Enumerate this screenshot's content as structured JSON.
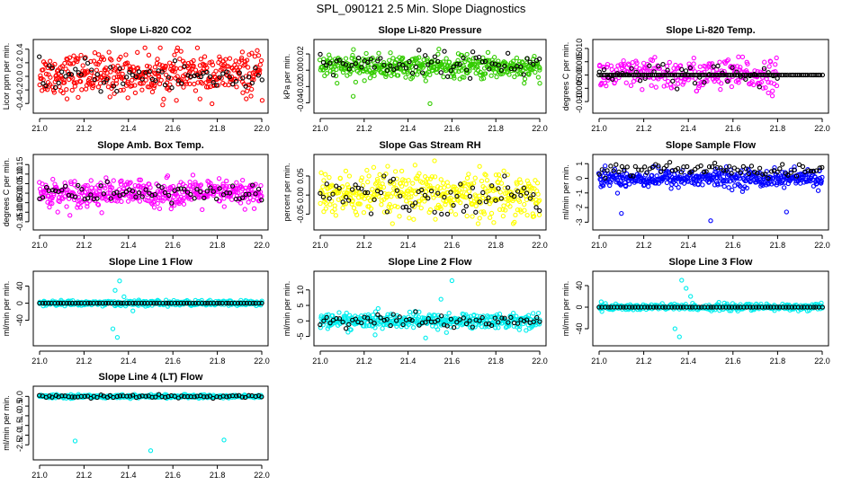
{
  "title": "SPL_090121  2.5 Min. Slope Diagnostics",
  "colors": {
    "red": "#ff0000",
    "green": "#33cc00",
    "magenta": "#ff00ff",
    "yellow": "#ffff00",
    "blue": "#0000ff",
    "cyan": "#00eeee",
    "black": "#000000"
  },
  "chart_data": [
    {
      "type": "scatter",
      "title": "Slope Li-820 CO2",
      "ylabel": "Licor ppm per min.",
      "xlim": [
        21.0,
        22.0
      ],
      "ylim": [
        -0.45,
        0.45
      ],
      "xticks": [
        "21.0",
        "21.2",
        "21.4",
        "21.6",
        "21.8",
        "22.0"
      ],
      "yticks": [
        {
          "v": -0.4,
          "t": "-0.4"
        },
        {
          "v": -0.2,
          "t": "-0.2"
        },
        {
          "v": 0.0,
          "t": "0.0"
        },
        {
          "v": 0.2,
          "t": "0.2"
        },
        {
          "v": 0.4,
          "t": "0.4"
        }
      ],
      "series": [
        {
          "name": "primary",
          "color": "red",
          "n": 420,
          "center": 0.03,
          "spread": 0.15,
          "lo": -0.42,
          "hi": 0.42
        },
        {
          "name": "reference",
          "color": "black",
          "n": 70,
          "center": 0.0,
          "spread": 0.12,
          "lo": -0.35,
          "hi": 0.35
        }
      ]
    },
    {
      "type": "scatter",
      "title": "Slope Li-820 Pressure",
      "ylabel": "kPa per min.",
      "xlim": [
        21.0,
        22.0
      ],
      "ylim": [
        -0.045,
        0.03
      ],
      "xticks": [
        "21.0",
        "21.2",
        "21.4",
        "21.6",
        "21.8",
        "22.0"
      ],
      "yticks": [
        {
          "v": -0.04,
          "t": "-0.04"
        },
        {
          "v": -0.02,
          "t": "-0.02"
        },
        {
          "v": 0.0,
          "t": "0.00"
        },
        {
          "v": 0.02,
          "t": "0.02"
        }
      ],
      "series": [
        {
          "name": "primary",
          "color": "green",
          "n": 420,
          "center": 0.004,
          "spread": 0.007,
          "lo": -0.02,
          "hi": 0.026,
          "outliers": [
            {
              "x": 21.15,
              "y": -0.032
            },
            {
              "x": 21.5,
              "y": -0.041
            },
            {
              "x": 22.0,
              "y": -0.016
            }
          ]
        },
        {
          "name": "reference",
          "color": "black",
          "n": 70,
          "center": 0.008,
          "spread": 0.007,
          "lo": -0.01,
          "hi": 0.03
        }
      ]
    },
    {
      "type": "scatter",
      "title": "Slope Li-820 Temp.",
      "ylabel": "degrees C per min.",
      "xlim": [
        21.0,
        22.0
      ],
      "ylim": [
        -0.012,
        0.011
      ],
      "xticks": [
        "21.0",
        "21.2",
        "21.4",
        "21.6",
        "21.8",
        "22.0"
      ],
      "yticks": [
        {
          "v": -0.01,
          "t": "-0.010"
        },
        {
          "v": -0.005,
          "t": "-0.005"
        },
        {
          "v": 0.0,
          "t": "0.000"
        },
        {
          "v": 0.005,
          "t": "0.005"
        },
        {
          "v": 0.01,
          "t": "0.010"
        }
      ],
      "series": [
        {
          "name": "primary",
          "color": "magenta",
          "n": 260,
          "xmax": 21.8,
          "center": 0.0,
          "spread": 0.003,
          "lo": -0.011,
          "hi": 0.01
        },
        {
          "name": "baseline",
          "color": "black",
          "n": 110,
          "center": 0.0,
          "spread": 0.0,
          "lo": 0.0,
          "hi": 0.0
        },
        {
          "name": "reference",
          "color": "black",
          "n": 40,
          "xmax": 21.8,
          "center": 0.0,
          "spread": 0.002,
          "lo": -0.006,
          "hi": 0.01
        }
      ]
    },
    {
      "type": "scatter",
      "title": "Slope Amb. Box Temp.",
      "ylabel": "degrees C per min.",
      "xlim": [
        21.0,
        22.0
      ],
      "ylim": [
        -0.16,
        0.17
      ],
      "xticks": [
        "21.0",
        "21.2",
        "21.4",
        "21.6",
        "21.8",
        "22.0"
      ],
      "yticks": [
        {
          "v": -0.15,
          "t": "-0.15"
        },
        {
          "v": -0.1,
          "t": "-0.10"
        },
        {
          "v": -0.05,
          "t": "-0.05"
        },
        {
          "v": 0.0,
          "t": "0.00"
        },
        {
          "v": 0.05,
          "t": "0.05"
        },
        {
          "v": 0.1,
          "t": "0.10"
        },
        {
          "v": 0.15,
          "t": "0.15"
        }
      ],
      "series": [
        {
          "name": "primary",
          "color": "magenta",
          "n": 420,
          "center": 0.0,
          "spread": 0.035,
          "lo": -0.15,
          "hi": 0.16
        },
        {
          "name": "reference",
          "color": "black",
          "n": 70,
          "center": 0.0,
          "spread": 0.025,
          "lo": -0.06,
          "hi": 0.06
        }
      ]
    },
    {
      "type": "scatter",
      "title": "Slope Gas Stream RH",
      "ylabel": "percent per min.",
      "xlim": [
        21.0,
        22.0
      ],
      "ylim": [
        -0.075,
        0.09
      ],
      "xticks": [
        "21.0",
        "21.2",
        "21.4",
        "21.6",
        "21.8",
        "22.0"
      ],
      "yticks": [
        {
          "v": -0.05,
          "t": "-0.05"
        },
        {
          "v": 0.0,
          "t": "0.00"
        },
        {
          "v": 0.05,
          "t": "0.05"
        }
      ],
      "series": [
        {
          "name": "primary",
          "color": "yellow",
          "n": 420,
          "center": 0.0,
          "spread": 0.03,
          "lo": -0.075,
          "hi": 0.09
        },
        {
          "name": "reference",
          "color": "black",
          "n": 70,
          "center": 0.0,
          "spread": 0.025,
          "lo": -0.05,
          "hi": 0.05
        }
      ]
    },
    {
      "type": "scatter",
      "title": "Slope Sample Flow",
      "ylabel": "ml/min per min.",
      "xlim": [
        21.0,
        22.0
      ],
      "ylim": [
        -3.1,
        1.2
      ],
      "xticks": [
        "21.0",
        "21.2",
        "21.4",
        "21.6",
        "21.8",
        "22.0"
      ],
      "yticks": [
        {
          "v": -3,
          "t": "-3"
        },
        {
          "v": -2,
          "t": "-2"
        },
        {
          "v": -1,
          "t": "-1"
        },
        {
          "v": 0,
          "t": "0"
        },
        {
          "v": 1,
          "t": "1"
        }
      ],
      "series": [
        {
          "name": "primary",
          "color": "blue",
          "n": 420,
          "center": 0.0,
          "spread": 0.3,
          "lo": -1.2,
          "hi": 1.0,
          "outliers": [
            {
              "x": 21.1,
              "y": -2.4
            },
            {
              "x": 21.5,
              "y": -2.9
            },
            {
              "x": 21.84,
              "y": -2.3
            }
          ]
        },
        {
          "name": "reference",
          "color": "black",
          "n": 80,
          "center": 0.55,
          "spread": 0.25,
          "lo": 0.0,
          "hi": 1.1
        }
      ]
    },
    {
      "type": "scatter",
      "title": "Slope Line 1 Flow",
      "ylabel": "ml/min per min.",
      "xlim": [
        21.0,
        22.0
      ],
      "ylim": [
        -85,
        60
      ],
      "xticks": [
        "21.0",
        "21.2",
        "21.4",
        "21.6",
        "21.8",
        "22.0"
      ],
      "yticks": [
        {
          "v": -40,
          "t": "-40"
        },
        {
          "v": 0,
          "t": "0"
        },
        {
          "v": 40,
          "t": "40"
        }
      ],
      "series": [
        {
          "name": "primary",
          "color": "cyan",
          "n": 400,
          "center": 0.0,
          "spread": 3.0,
          "lo": -10,
          "hi": 10,
          "outliers": [
            {
              "x": 21.36,
              "y": 52
            },
            {
              "x": 21.34,
              "y": 30
            },
            {
              "x": 21.38,
              "y": 15
            },
            {
              "x": 21.35,
              "y": -80
            },
            {
              "x": 21.33,
              "y": -60
            },
            {
              "x": 21.42,
              "y": -18
            }
          ]
        },
        {
          "name": "reference",
          "color": "black",
          "n": 75,
          "center": 0.0,
          "spread": 0.0,
          "lo": 0.0,
          "hi": 0.0
        }
      ]
    },
    {
      "type": "scatter",
      "title": "Slope Line 2 Flow",
      "ylabel": "ml/min per min.",
      "xlim": [
        21.0,
        22.0
      ],
      "ylim": [
        -6,
        14
      ],
      "xticks": [
        "21.0",
        "21.2",
        "21.4",
        "21.6",
        "21.8",
        "22.0"
      ],
      "yticks": [
        {
          "v": -5,
          "t": "-5"
        },
        {
          "v": 0,
          "t": "0"
        },
        {
          "v": 5,
          "t": "5"
        },
        {
          "v": 10,
          "t": "10"
        }
      ],
      "series": [
        {
          "name": "primary",
          "color": "cyan",
          "n": 400,
          "center": 0.0,
          "spread": 1.2,
          "lo": -4,
          "hi": 4,
          "outliers": [
            {
              "x": 21.6,
              "y": 13
            },
            {
              "x": 21.55,
              "y": 7
            },
            {
              "x": 21.25,
              "y": -4.5
            },
            {
              "x": 21.48,
              "y": -5.5
            }
          ]
        },
        {
          "name": "reference",
          "color": "black",
          "n": 70,
          "center": 0.0,
          "spread": 1.2,
          "lo": -3,
          "hi": 3
        }
      ]
    },
    {
      "type": "scatter",
      "title": "Slope Line 3 Flow",
      "ylabel": "ml/min per min.",
      "xlim": [
        21.0,
        22.0
      ],
      "ylim": [
        -60,
        55
      ],
      "xticks": [
        "21.0",
        "21.2",
        "21.4",
        "21.6",
        "21.8",
        "22.0"
      ],
      "yticks": [
        {
          "v": -40,
          "t": "-40"
        },
        {
          "v": 0,
          "t": "0"
        },
        {
          "v": 40,
          "t": "40"
        }
      ],
      "series": [
        {
          "name": "primary",
          "color": "cyan",
          "n": 400,
          "center": 0.0,
          "spread": 3.0,
          "lo": -8,
          "hi": 12,
          "outliers": [
            {
              "x": 21.37,
              "y": 50
            },
            {
              "x": 21.39,
              "y": 35
            },
            {
              "x": 21.41,
              "y": 20
            },
            {
              "x": 21.36,
              "y": -55
            },
            {
              "x": 21.34,
              "y": -40
            }
          ]
        },
        {
          "name": "reference",
          "color": "black",
          "n": 75,
          "center": 0.0,
          "spread": 0.0,
          "lo": 0.0,
          "hi": 0.0
        }
      ]
    },
    {
      "type": "scatter",
      "title": "Slope Line 4 (LT) Flow",
      "ylabel": "ml/min per min.",
      "xlim": [
        21.0,
        22.0
      ],
      "ylim": [
        -2.95,
        0.2
      ],
      "xticks": [
        "21.0",
        "21.2",
        "21.4",
        "21.6",
        "21.8",
        "22.0"
      ],
      "yticks": [
        {
          "v": -2.5,
          "t": "-2.5"
        },
        {
          "v": -2.0,
          "t": "-2.0"
        },
        {
          "v": -1.5,
          "t": "-1.5"
        },
        {
          "v": -1.0,
          "t": "-1.0"
        },
        {
          "v": -0.5,
          "t": "-0.5"
        },
        {
          "v": 0.0,
          "t": "0.0"
        }
      ],
      "series": [
        {
          "name": "primary",
          "color": "cyan",
          "n": 400,
          "center": 0.0,
          "spread": 0.04,
          "lo": -0.12,
          "hi": 0.1,
          "outliers": [
            {
              "x": 21.16,
              "y": -2.3
            },
            {
              "x": 21.5,
              "y": -2.8
            },
            {
              "x": 21.83,
              "y": -2.25
            }
          ]
        },
        {
          "name": "reference",
          "color": "black",
          "n": 70,
          "center": 0.0,
          "spread": 0.04,
          "lo": -0.1,
          "hi": 0.1
        }
      ]
    }
  ]
}
